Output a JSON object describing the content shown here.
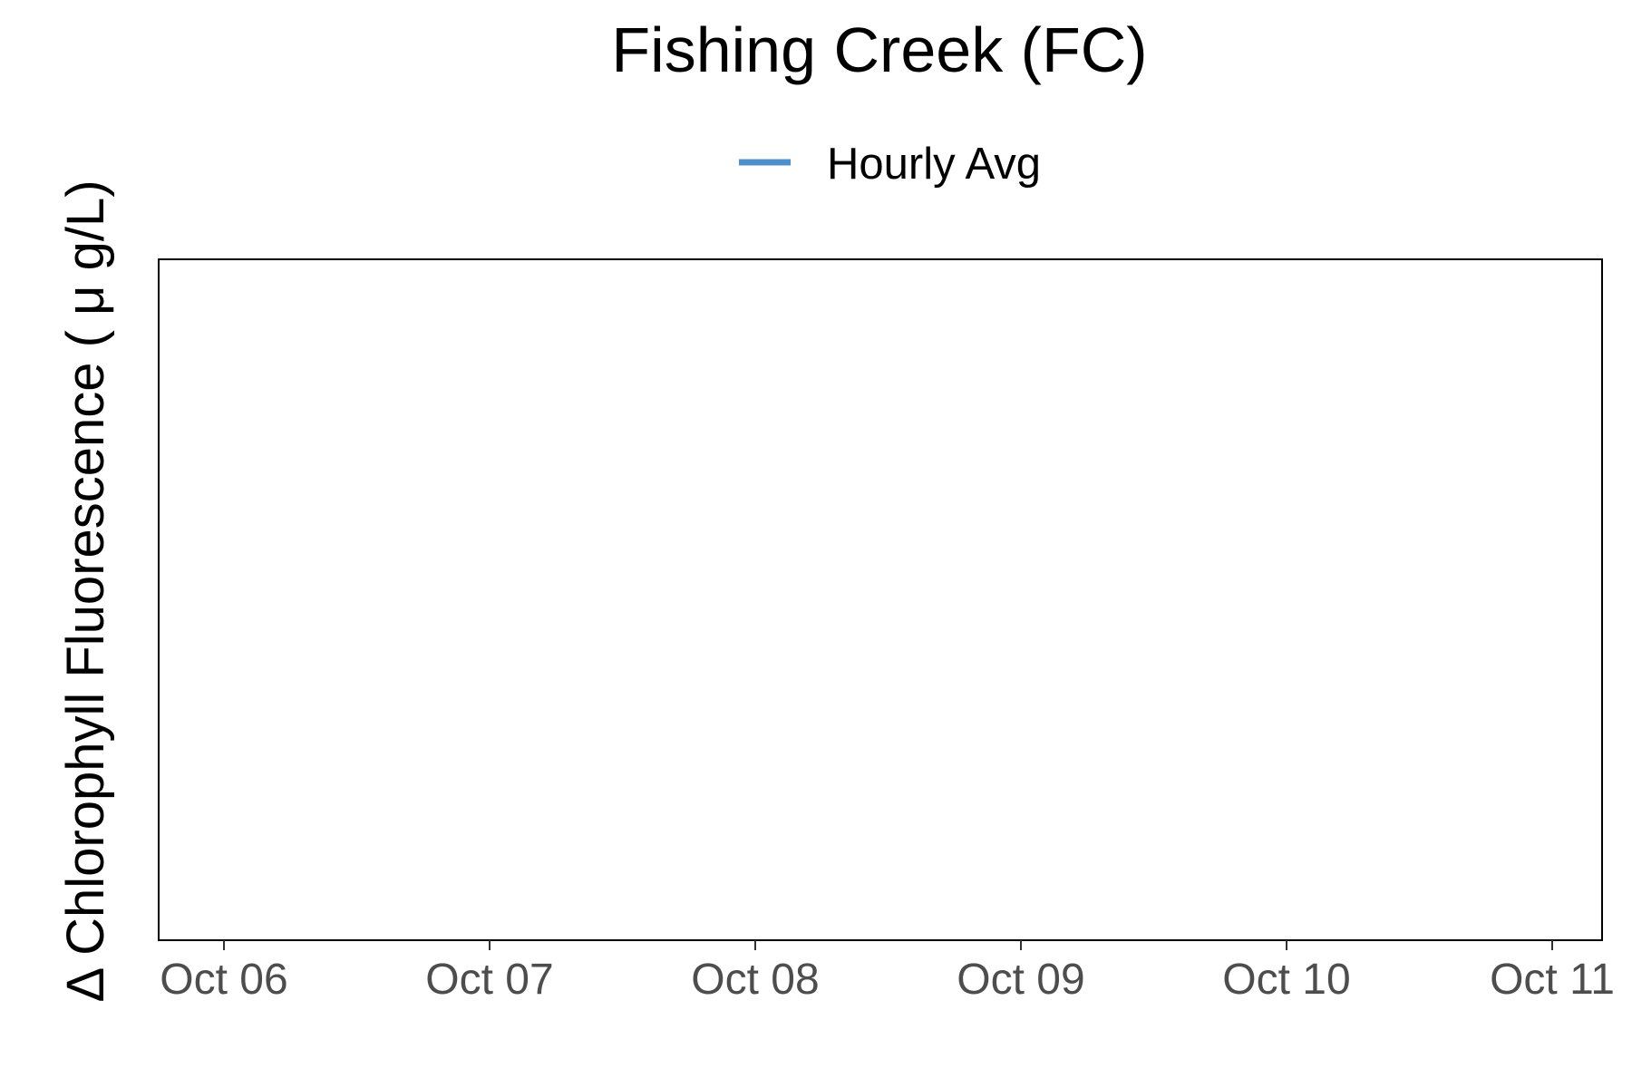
{
  "chart_data": {
    "type": "line",
    "title": "Fishing Creek (FC)",
    "xlabel": "",
    "ylabel": "Δ Chlorophyll Fluorescence ( μ g/L)",
    "x_ticks": [
      "Oct 06",
      "Oct 07",
      "Oct 08",
      "Oct 09",
      "Oct 10",
      "Oct 11"
    ],
    "x_tick_values": [
      "Oct 06",
      "Oct 07",
      "Oct 08",
      "Oct 09",
      "Oct 10",
      "Oct 11"
    ],
    "xlim": [
      "Oct 05 18:00",
      "Oct 11 03:00"
    ],
    "y_ticks": [],
    "series": [
      {
        "name": "Hourly Avg",
        "color": "#4f90cd",
        "x": [],
        "y": []
      }
    ],
    "legend_position": "top-center",
    "grid": false
  }
}
